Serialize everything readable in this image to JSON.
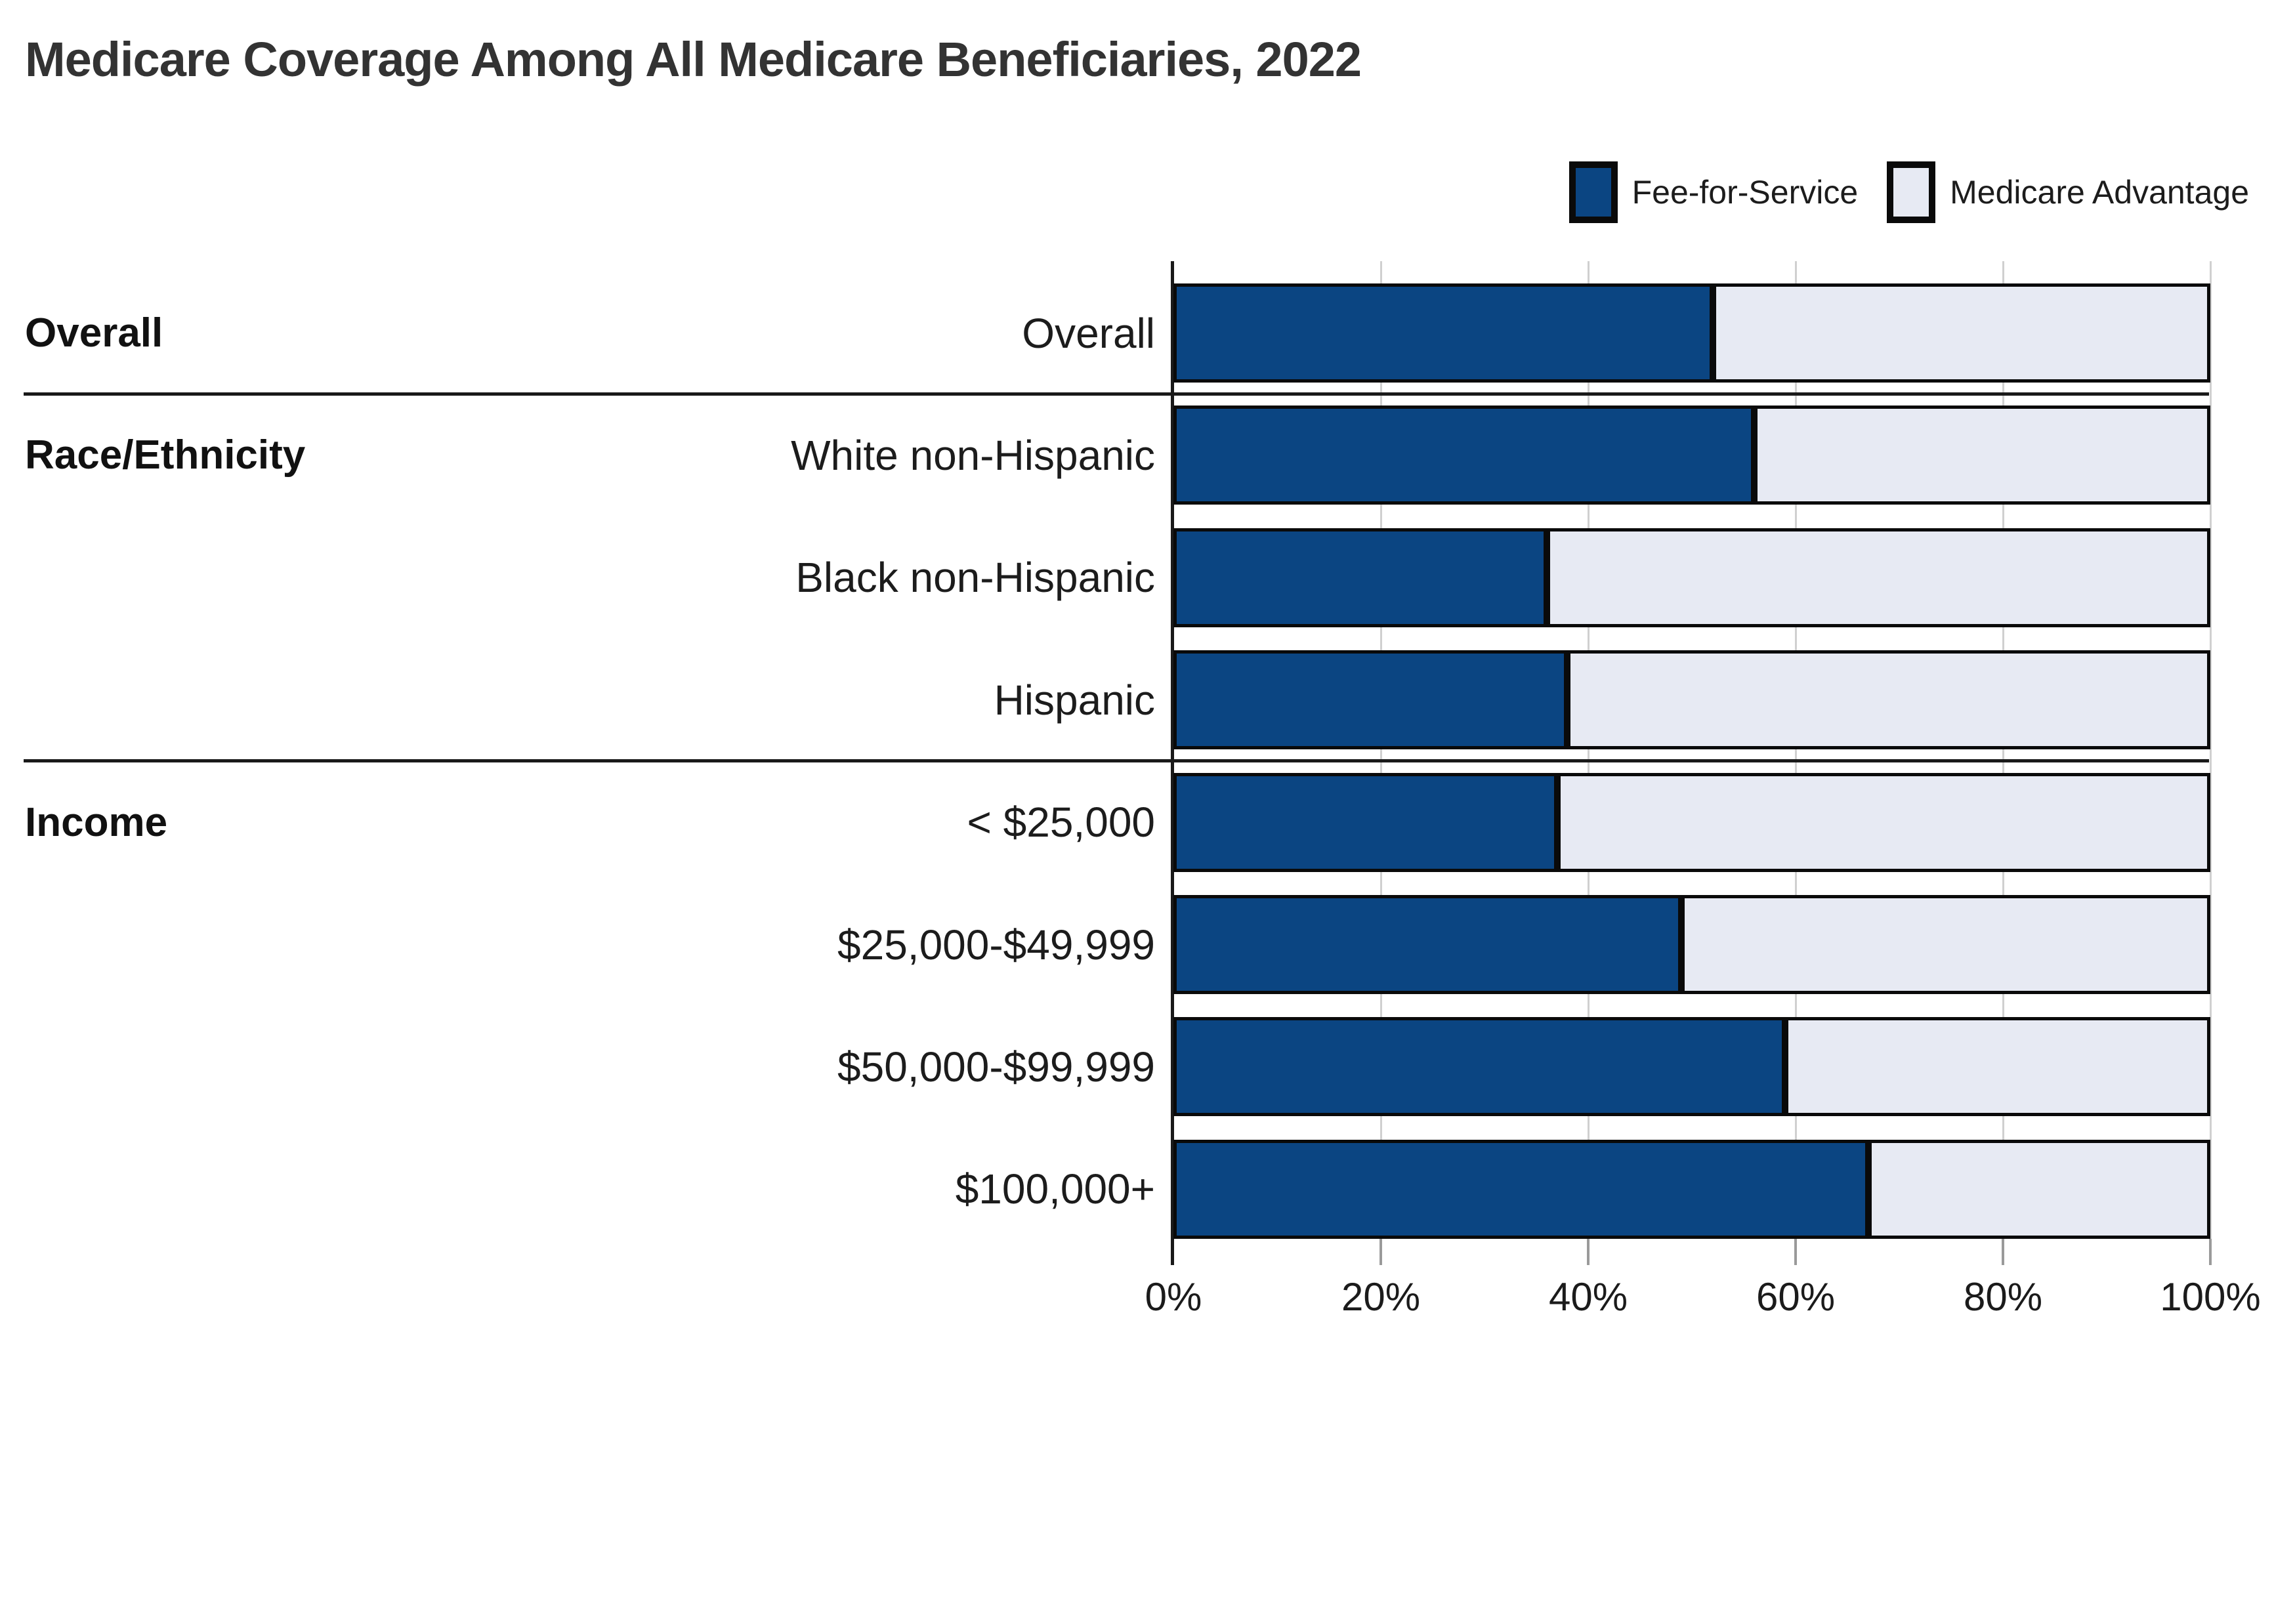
{
  "title": "Medicare Coverage Among All Medicare Beneficiaries, 2022",
  "legend": {
    "items": [
      {
        "label": "Fee-for-Service",
        "color": "#0B4582"
      },
      {
        "label": "Medicare Advantage",
        "color": "#E7EAF3"
      }
    ]
  },
  "chart_data": {
    "type": "bar",
    "orientation": "horizontal",
    "stacked": true,
    "unit": "percent",
    "title": "Medicare Coverage Among All Medicare Beneficiaries, 2022",
    "legend_position": "top-right",
    "sections": [
      {
        "label": "Overall",
        "categories": [
          "Overall"
        ]
      },
      {
        "label": "Race/Ethnicity",
        "categories": [
          "White non-Hispanic",
          "Black non-Hispanic",
          "Hispanic"
        ]
      },
      {
        "label": "Income",
        "categories": [
          "< $25,000",
          "$25,000-$49,999",
          "$50,000-$99,999",
          "$100,000+"
        ]
      }
    ],
    "categories": [
      "Overall",
      "White non-Hispanic",
      "Black non-Hispanic",
      "Hispanic",
      "< $25,000",
      "$25,000-$49,999",
      "$50,000-$99,999",
      "$100,000+"
    ],
    "series": [
      {
        "name": "Fee-for-Service",
        "color": "#0B4582",
        "values": [
          52,
          56,
          36,
          38,
          37,
          49,
          59,
          67
        ]
      },
      {
        "name": "Medicare Advantage",
        "color": "#E7EAF3",
        "values": [
          48,
          44,
          64,
          62,
          63,
          51,
          41,
          33
        ]
      }
    ],
    "x_axis": {
      "min": 0,
      "max": 100,
      "tick_labels": [
        "0%",
        "20%",
        "40%",
        "60%",
        "80%",
        "100%"
      ],
      "grid": true
    }
  },
  "colors": {
    "bar_border": "#0a0a0a",
    "axis_line": "#1a1a1a",
    "gridline": "#d0d0d0",
    "tick": "#9a9a9a",
    "text": "#1c1c1c",
    "title_text": "#333333",
    "background": "#ffffff"
  }
}
